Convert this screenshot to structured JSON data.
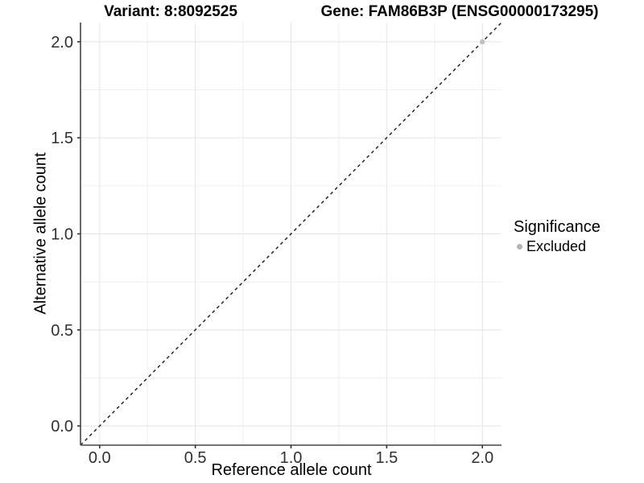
{
  "figure": {
    "title_variant": "Variant: 8:8092525",
    "title_gene": "Gene: FAM86B3P (ENSG00000173295)"
  },
  "chart_data": {
    "type": "scatter",
    "title": "Variant: 8:8092525   Gene: FAM86B3P (ENSG00000173295)",
    "xlabel": "Reference allele count",
    "ylabel": "Alternative allele count",
    "xlim": [
      -0.1,
      2.1
    ],
    "ylim": [
      -0.1,
      2.1
    ],
    "x_ticks": [
      0.0,
      0.5,
      1.0,
      1.5,
      2.0
    ],
    "y_ticks": [
      0.0,
      0.5,
      1.0,
      1.5,
      2.0
    ],
    "x_tick_labels": [
      "0.0",
      "0.5",
      "1.0",
      "1.5",
      "2.0"
    ],
    "y_tick_labels": [
      "0.0",
      "0.5",
      "1.0",
      "1.5",
      "2.0"
    ],
    "x_minor_ticks": [
      0.25,
      0.75,
      1.25,
      1.75
    ],
    "y_minor_ticks": [
      0.25,
      0.75,
      1.25,
      1.75
    ],
    "grid": true,
    "reference_line": {
      "kind": "identity",
      "style": "dashed",
      "x1": -0.1,
      "y1": -0.1,
      "x2": 2.1,
      "y2": 2.1
    },
    "series": [
      {
        "name": "Excluded",
        "color": "#c2c2c2",
        "points": [
          {
            "x": 2.0,
            "y": 2.0
          }
        ]
      }
    ],
    "legend": {
      "title": "Significance",
      "position": "right",
      "entries": [
        {
          "label": "Excluded",
          "color": "#b3b3b3"
        }
      ]
    },
    "colors": {
      "background": "#ffffff",
      "grid_major": "#e4e4e4",
      "grid_minor": "#f1f1f1",
      "axis_line": "#474747",
      "tick_mark": "#333333",
      "tick_label": "#303030",
      "dashed_line": "#1a1a1a"
    }
  }
}
